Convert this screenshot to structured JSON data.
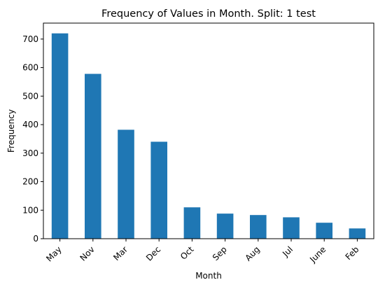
{
  "chart_data": {
    "type": "bar",
    "title": "Frequency of Values in Month. Split: 1 test",
    "xlabel": "Month",
    "ylabel": "Frequency",
    "categories": [
      "May",
      "Nov",
      "Mar",
      "Dec",
      "Oct",
      "Sep",
      "Aug",
      "Jul",
      "June",
      "Feb"
    ],
    "values": [
      720,
      578,
      382,
      340,
      110,
      88,
      83,
      75,
      56,
      36
    ],
    "ylim": [
      0,
      756
    ],
    "yticks": [
      0,
      100,
      200,
      300,
      400,
      500,
      600,
      700
    ],
    "bar_color": "#1f77b4",
    "grid": false,
    "legend": false
  }
}
